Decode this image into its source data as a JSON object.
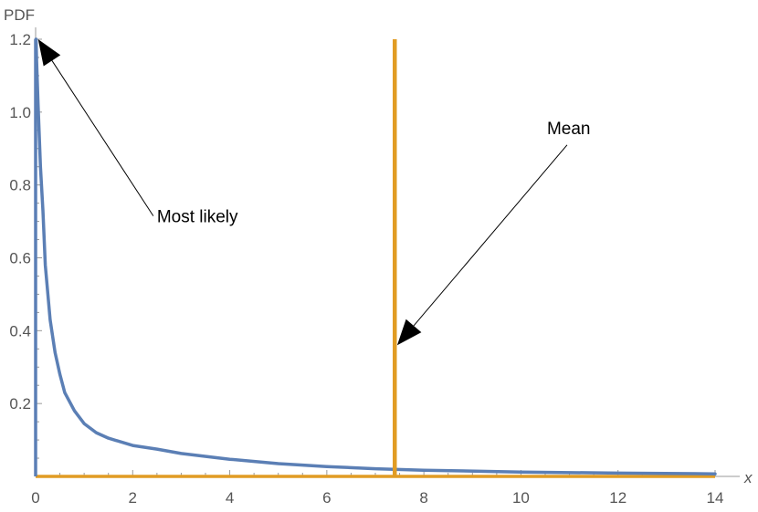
{
  "chart_data": {
    "type": "line",
    "xlabel": "x",
    "ylabel": "PDF",
    "xlim": [
      0,
      14
    ],
    "ylim": [
      0,
      1.2
    ],
    "x_ticks": [
      0,
      2,
      4,
      6,
      8,
      10,
      12,
      14
    ],
    "y_ticks": [
      0.2,
      0.4,
      0.6,
      0.8,
      1.0,
      1.2
    ],
    "grid": false,
    "series": [
      {
        "color": "#5b7fb5",
        "x": [
          0.005,
          0.01,
          0.02,
          0.05,
          0.1,
          0.15,
          0.2,
          0.3,
          0.4,
          0.5,
          0.6,
          0.8,
          1.0,
          1.25,
          1.5,
          2.0,
          2.5,
          3.0,
          4.0,
          5.0,
          6.0,
          7.0,
          8.0,
          10.0,
          12.0,
          14.0
        ],
        "y": [
          1.2,
          1.2,
          1.14,
          1.02,
          0.85,
          0.73,
          0.58,
          0.43,
          0.34,
          0.28,
          0.23,
          0.18,
          0.145,
          0.12,
          0.105,
          0.085,
          0.075,
          0.063,
          0.047,
          0.035,
          0.027,
          0.021,
          0.017,
          0.012,
          0.009,
          0.007
        ]
      }
    ],
    "vertical_lines": [
      {
        "color": "#e19c24",
        "x": 7.4,
        "y_top": 1.2
      }
    ],
    "horizontal_lines": [
      {
        "color": "#e19c24",
        "y": 0
      }
    ],
    "annotations": [
      {
        "text": "Most likely",
        "point": [
          0.05,
          1.2
        ],
        "text_at": [
          2.5,
          0.72
        ]
      },
      {
        "text": "Mean",
        "point": [
          7.45,
          0.36
        ],
        "text_at": [
          10.8,
          0.94
        ]
      }
    ],
    "colors": {
      "curve": "#5b7fb5",
      "mean_line": "#e19c24",
      "axis": "#999999",
      "annotation": "#000000"
    }
  }
}
